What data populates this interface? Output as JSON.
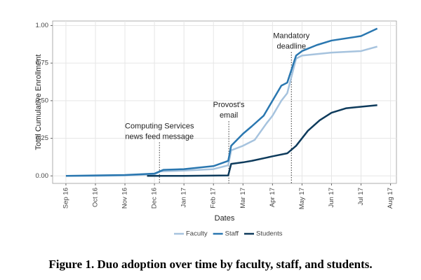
{
  "chart_data": {
    "type": "line",
    "caption": "Figure 1. Duo adoption over time by faculty, staff, and students.",
    "xlabel": "Dates",
    "ylabel": "Total Cumulative Enrollment",
    "xlim": [
      -0.45,
      11.2
    ],
    "ylim": [
      -0.05,
      1.03
    ],
    "xticks": [
      {
        "value": 0,
        "label": "Sep 16"
      },
      {
        "value": 1,
        "label": "Oct 16"
      },
      {
        "value": 2,
        "label": "Nov 16"
      },
      {
        "value": 3,
        "label": "Dec 16"
      },
      {
        "value": 4,
        "label": "Jan 17"
      },
      {
        "value": 5,
        "label": "Feb 17"
      },
      {
        "value": 6,
        "label": "Mar 17"
      },
      {
        "value": 7,
        "label": "Apr 17"
      },
      {
        "value": 8,
        "label": "May 17"
      },
      {
        "value": 9,
        "label": "Jun 17"
      },
      {
        "value": 10,
        "label": "Jul 17"
      },
      {
        "value": 11,
        "label": "Aug 17"
      }
    ],
    "yticks": [
      {
        "value": 0,
        "label": "0.00"
      },
      {
        "value": 0.25,
        "label": "0.25"
      },
      {
        "value": 0.5,
        "label": "0.50"
      },
      {
        "value": 0.75,
        "label": "0.75"
      },
      {
        "value": 1,
        "label": "1.00"
      }
    ],
    "grid": true,
    "legend": "bottom",
    "series": [
      {
        "name": "Faculty",
        "color": "#a6c3de",
        "x": [
          0,
          1,
          2,
          3,
          3.2,
          4,
          5,
          5.5,
          5.6,
          6,
          6.4,
          6.8,
          7,
          7.3,
          7.5,
          7.8,
          8,
          9,
          10,
          10.55
        ],
        "values": [
          0,
          0,
          0.003,
          0.01,
          0.03,
          0.035,
          0.045,
          0.07,
          0.17,
          0.2,
          0.24,
          0.35,
          0.4,
          0.5,
          0.55,
          0.78,
          0.8,
          0.82,
          0.83,
          0.86
        ]
      },
      {
        "name": "Staff",
        "color": "#2a77b0",
        "x": [
          0,
          1,
          2,
          3,
          3.3,
          4,
          5,
          5.5,
          5.6,
          6,
          6.3,
          6.7,
          7,
          7.3,
          7.5,
          7.8,
          8,
          8.5,
          9,
          10,
          10.55
        ],
        "values": [
          0,
          0.003,
          0.006,
          0.015,
          0.04,
          0.045,
          0.065,
          0.1,
          0.2,
          0.28,
          0.33,
          0.4,
          0.5,
          0.6,
          0.62,
          0.8,
          0.83,
          0.87,
          0.9,
          0.93,
          0.98
        ]
      },
      {
        "name": "Students",
        "color": "#0e3b5c",
        "x": [
          2.75,
          4,
          5.5,
          5.6,
          6,
          6.3,
          7,
          7.5,
          7.8,
          8.2,
          8.6,
          9,
          9.5,
          10,
          10.55
        ],
        "values": [
          0,
          0,
          0.003,
          0.08,
          0.09,
          0.1,
          0.13,
          0.15,
          0.2,
          0.3,
          0.37,
          0.42,
          0.45,
          0.46,
          0.47
        ]
      }
    ],
    "annotations": [
      {
        "x": 3.17,
        "y": 0.33,
        "text": [
          "Computing Services",
          "news feed message"
        ]
      },
      {
        "x": 5.52,
        "y": 0.47,
        "text": [
          "Provost's",
          "email"
        ]
      },
      {
        "x": 7.64,
        "y": 0.93,
        "text": [
          "Mandatory",
          "deadline"
        ]
      }
    ]
  }
}
